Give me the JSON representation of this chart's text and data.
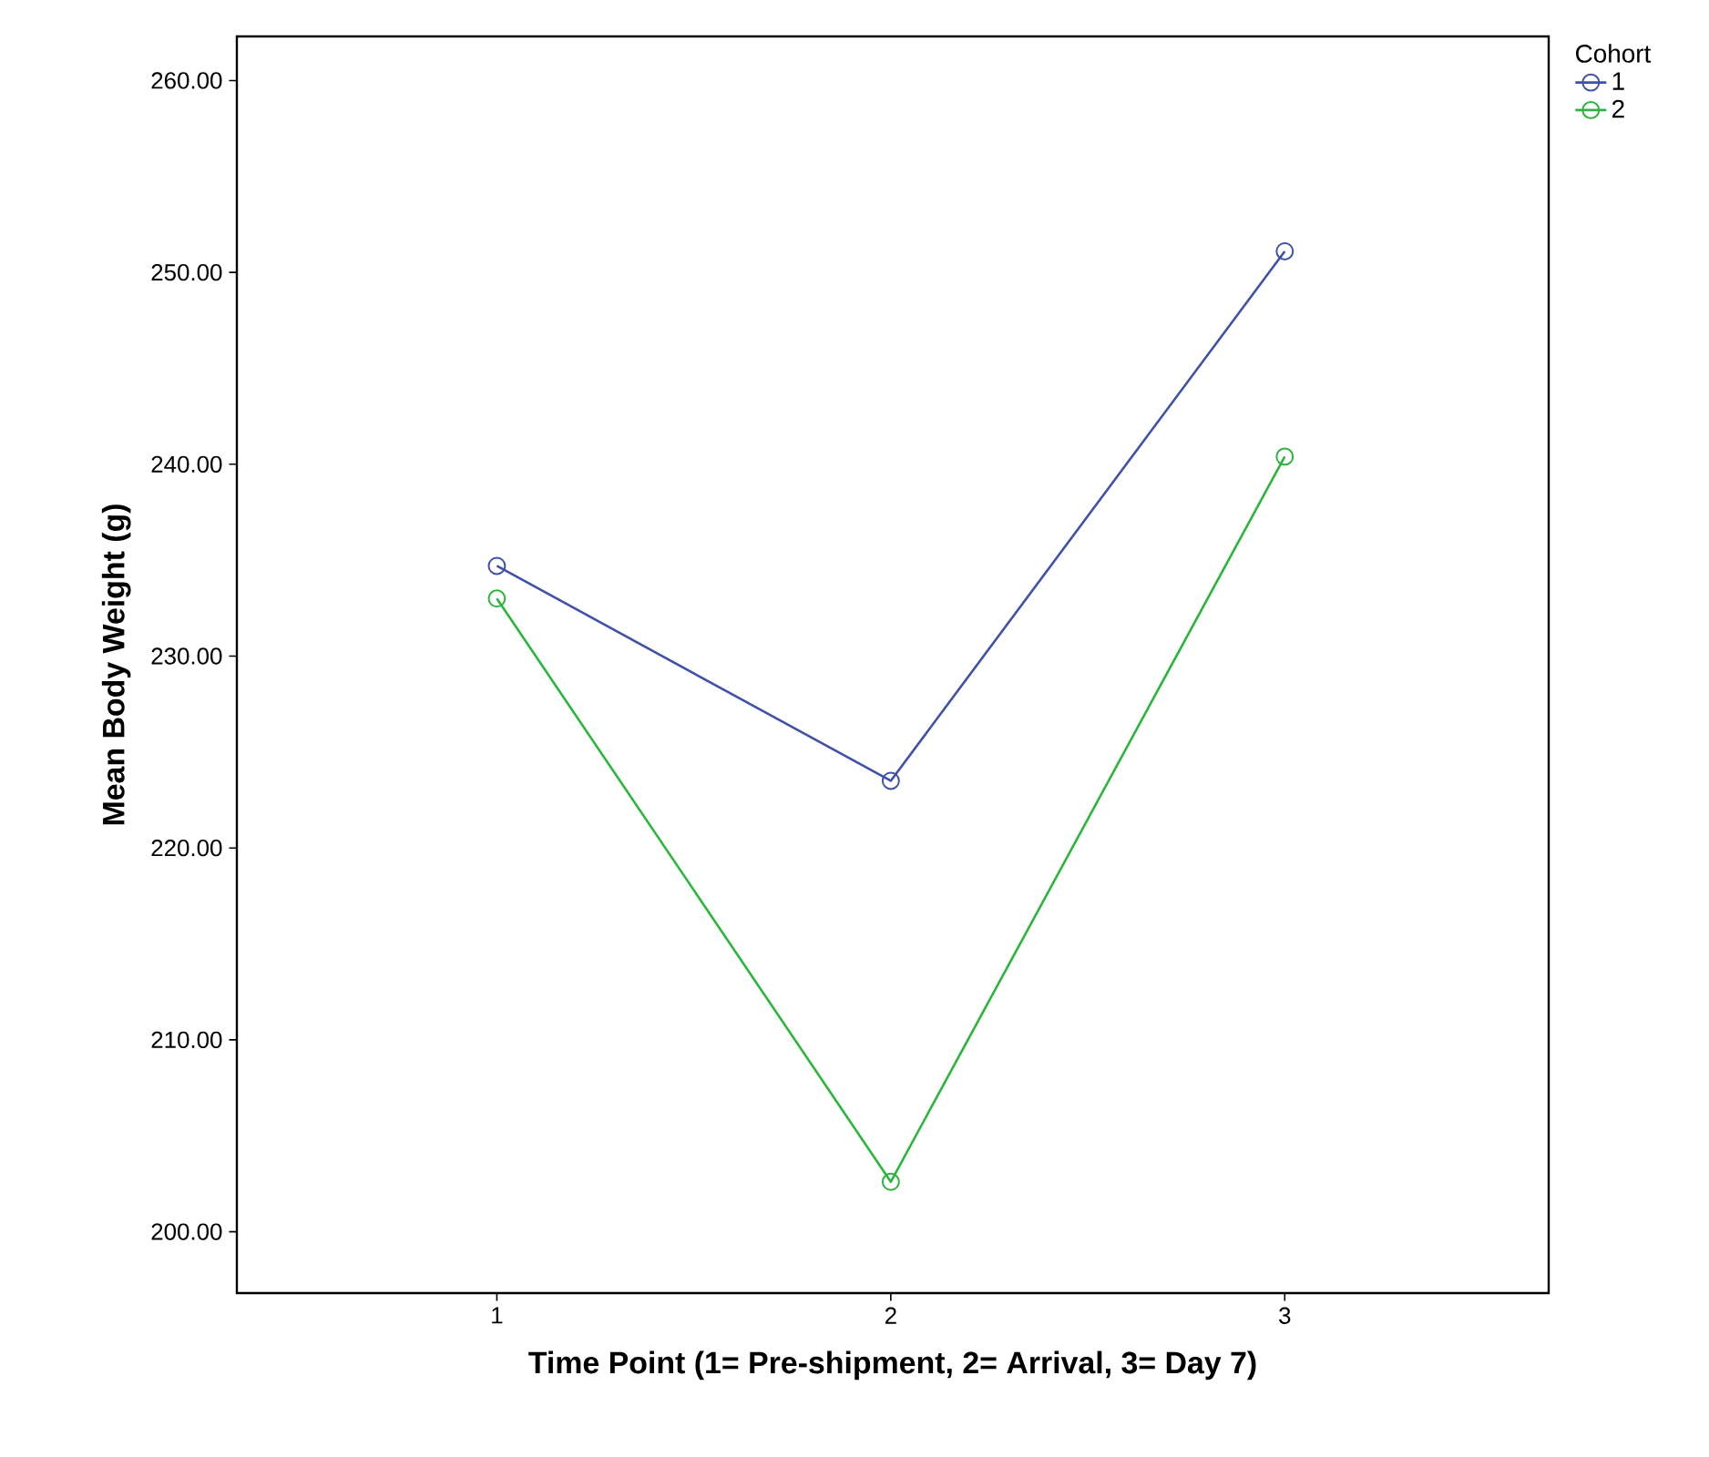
{
  "chart_data": {
    "type": "line",
    "xlabel": "Time Point (1= Pre-shipment, 2= Arrival, 3= Day 7)",
    "ylabel": "Mean Body Weight (g)",
    "legend_title": "Cohort",
    "legend": "top right",
    "marker": "circle",
    "categories": [
      "1",
      "2",
      "3"
    ],
    "ylim": [
      196.8,
      262.3
    ],
    "yticks": [
      {
        "value": 200,
        "label": "200.00"
      },
      {
        "value": 210,
        "label": "210.00"
      },
      {
        "value": 220,
        "label": "220.00"
      },
      {
        "value": 230,
        "label": "230.00"
      },
      {
        "value": 240,
        "label": "240.00"
      },
      {
        "value": 250,
        "label": "250.00"
      },
      {
        "value": 260,
        "label": "260.00"
      }
    ],
    "series": [
      {
        "name": "1",
        "color": "#3f51a8",
        "values": [
          234.7,
          223.5,
          251.1
        ]
      },
      {
        "name": "2",
        "color": "#2ab63c",
        "values": [
          233.0,
          202.6,
          240.4
        ]
      }
    ]
  }
}
